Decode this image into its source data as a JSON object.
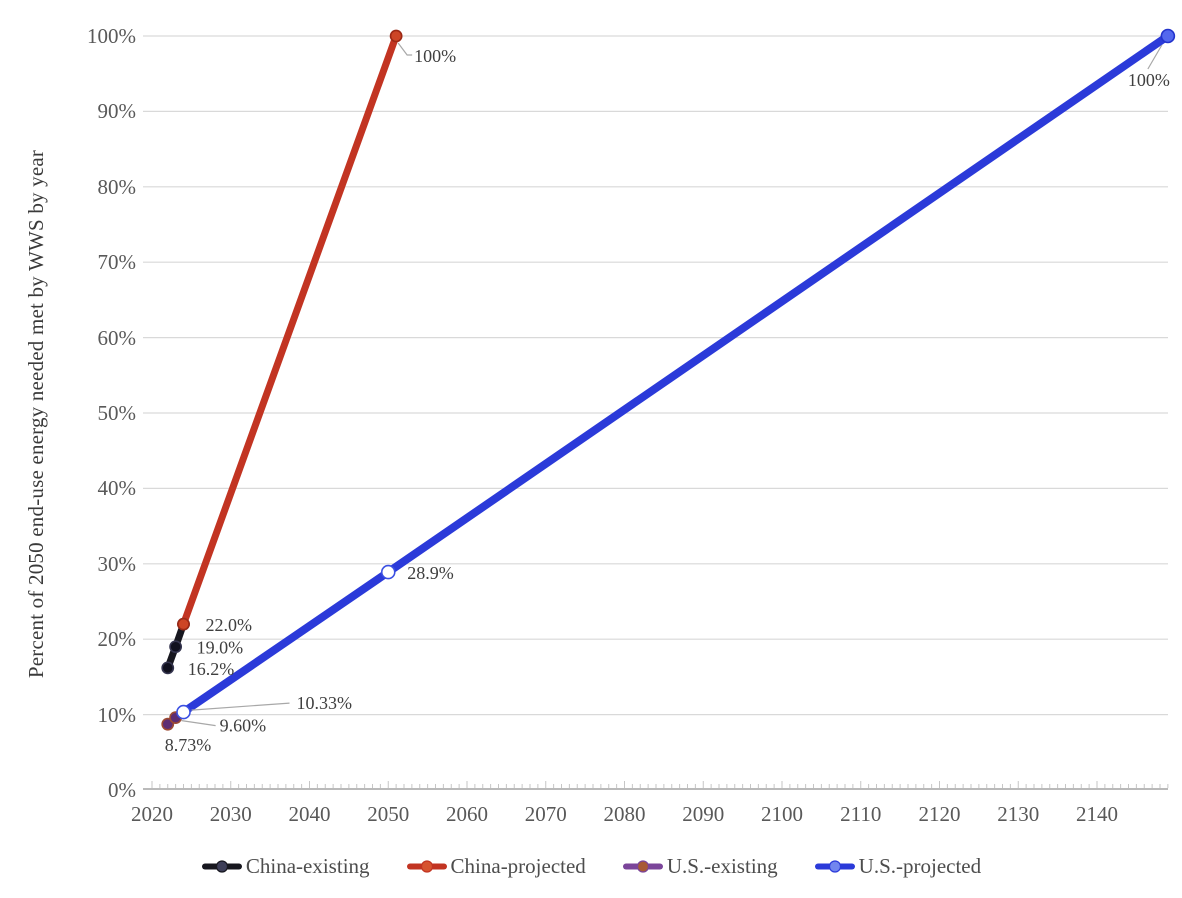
{
  "chart_data": {
    "type": "line",
    "title": "",
    "xlabel": "",
    "ylabel": "Percent of 2050 end-use energy needed met by WWS by year",
    "x_tick_labels": [
      "2020",
      "2030",
      "2040",
      "2050",
      "2060",
      "2070",
      "2080",
      "2090",
      "2100",
      "2110",
      "2120",
      "2130",
      "2140"
    ],
    "y_tick_labels": [
      "0%",
      "10%",
      "20%",
      "30%",
      "40%",
      "50%",
      "60%",
      "70%",
      "80%",
      "90%",
      "100%"
    ],
    "x_range": [
      2019,
      2150
    ],
    "y_range": [
      0,
      100
    ],
    "grid": "horizontal",
    "legend_position": "bottom",
    "colors": {
      "gridline": "#d9d9d9",
      "axis_line": "#b0b0b0",
      "tick_mark": "#c6c6c6",
      "tick_label": "#595959",
      "data_label": "#3f3f3f",
      "leader_line": "#a8a8a8"
    },
    "series": [
      {
        "name": "China-existing",
        "color": "#17171f",
        "line_width": 7,
        "marker_fill": "#10101e",
        "marker_stroke": "#34344e",
        "legend_dot": "#3d3e58",
        "points": [
          {
            "year": 2022,
            "value": 16.2,
            "label": "16.2%"
          },
          {
            "year": 2023,
            "value": 19.0,
            "label": "19.0%"
          },
          {
            "year": 2024,
            "value": 22.0,
            "label": "22.0%"
          }
        ]
      },
      {
        "name": "China-projected",
        "color": "#c23422",
        "line_width": 7,
        "marker_fill": "#cd4526",
        "marker_stroke": "#9c2815",
        "legend_dot": "#d65330",
        "points": [
          {
            "year": 2024,
            "value": 22.0
          },
          {
            "year": 2051,
            "value": 100,
            "label": "100%"
          }
        ]
      },
      {
        "name": "U.S.-existing",
        "color": "#7b459a",
        "line_width": 6,
        "marker_fill": "#5e2d73",
        "marker_stroke": "#9c4a33",
        "legend_dot": "#a85a35",
        "points": [
          {
            "year": 2022,
            "value": 8.73,
            "label": "8.73%"
          },
          {
            "year": 2023,
            "value": 9.6,
            "label": "9.60%"
          },
          {
            "year": 2024,
            "value": 10.33
          }
        ]
      },
      {
        "name": "U.S.-projected",
        "color": "#2b3ad9",
        "line_width": 8,
        "marker_fill": "#ffffff",
        "marker_stroke": "#3b50e2",
        "legend_dot": "#7286ef",
        "points": [
          {
            "year": 2024,
            "value": 10.33,
            "label": "10.33%"
          },
          {
            "year": 2050,
            "value": 28.9,
            "label": "28.9%"
          },
          {
            "year": 2149,
            "value": 100,
            "label": "100%",
            "marker_fill": "#5468ee",
            "marker_stroke": "#2333cc"
          }
        ]
      }
    ]
  }
}
